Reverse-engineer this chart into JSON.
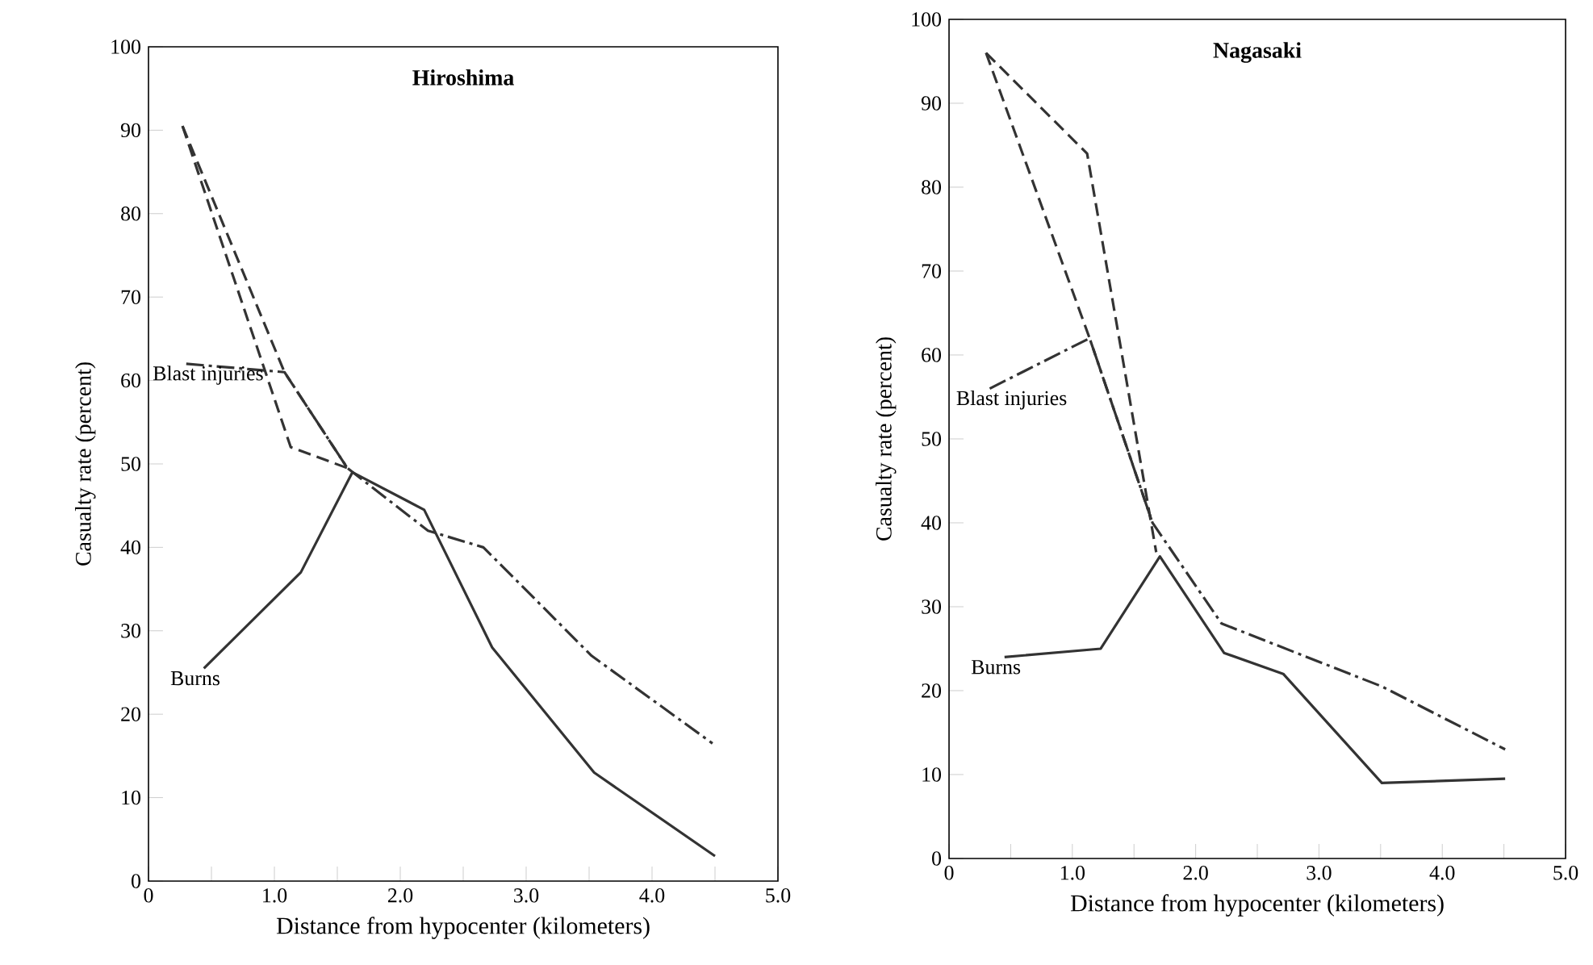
{
  "chart_data": [
    {
      "type": "line",
      "title": "Hiroshima",
      "xlabel": "Distance from hypocenter (kilometers)",
      "ylabel": "Casualty rate (percent)",
      "xlim": [
        0,
        5
      ],
      "ylim": [
        0,
        100
      ],
      "xticks": [
        {
          "value": 0,
          "label": "0"
        },
        {
          "value": 0.5,
          "label": null
        },
        {
          "value": 1,
          "label": "1.0"
        },
        {
          "value": 1.5,
          "label": null
        },
        {
          "value": 2,
          "label": "2.0"
        },
        {
          "value": 2.5,
          "label": null
        },
        {
          "value": 3,
          "label": "3.0"
        },
        {
          "value": 3.5,
          "label": null
        },
        {
          "value": 4,
          "label": "4.0"
        },
        {
          "value": 4.5,
          "label": null
        },
        {
          "value": 5,
          "label": "5.0"
        }
      ],
      "yticks": [
        0,
        10,
        20,
        30,
        40,
        50,
        60,
        70,
        80,
        90,
        100
      ],
      "grid": false,
      "legend": false,
      "marker": "none",
      "series": [
        {
          "name": "Burns",
          "color": "#333333",
          "line_style": "solid",
          "x": [
            0.44,
            1.21,
            1.62,
            2.19,
            2.73,
            3.54,
            4.5
          ],
          "values": [
            25.5,
            37,
            49,
            44.5,
            28,
            13,
            3
          ]
        },
        {
          "name": "Blast injuries",
          "color": "#333333",
          "line_style": "dashdot",
          "x": [
            0.3,
            1.08,
            1.58,
            2.22,
            2.66,
            3.52,
            4.48
          ],
          "values": [
            62,
            61,
            49.5,
            42,
            40,
            27,
            16.5
          ]
        },
        {
          "color": "#333333",
          "line_style": "dashed",
          "x": [
            0.27,
            1.13,
            1.58
          ],
          "values": [
            90.5,
            52,
            49.5
          ]
        },
        {
          "color": "#333333",
          "line_style": "dashed",
          "x": [
            0.27,
            1.08,
            1.58
          ],
          "values": [
            90.5,
            61,
            49.5
          ]
        }
      ]
    },
    {
      "type": "line",
      "title": "Nagasaki",
      "xlabel": "Distance from hypocenter (kilometers)",
      "ylabel": "Casualty rate (percent)",
      "xlim": [
        0,
        5
      ],
      "ylim": [
        0,
        100
      ],
      "xticks": [
        {
          "value": 0,
          "label": "0"
        },
        {
          "value": 0.5,
          "label": null
        },
        {
          "value": 1,
          "label": "1.0"
        },
        {
          "value": 1.5,
          "label": null
        },
        {
          "value": 2,
          "label": "2.0"
        },
        {
          "value": 2.5,
          "label": null
        },
        {
          "value": 3,
          "label": "3.0"
        },
        {
          "value": 3.5,
          "label": null
        },
        {
          "value": 4,
          "label": "4.0"
        },
        {
          "value": 4.5,
          "label": null
        },
        {
          "value": 5,
          "label": "5.0"
        }
      ],
      "yticks": [
        0,
        10,
        20,
        30,
        40,
        50,
        60,
        70,
        80,
        90,
        100
      ],
      "grid": false,
      "legend": false,
      "marker": "none",
      "series": [
        {
          "name": "Burns",
          "color": "#333333",
          "line_style": "solid",
          "x": [
            0.45,
            1.23,
            1.71,
            2.23,
            2.71,
            3.51,
            4.51
          ],
          "values": [
            24,
            25,
            36,
            24.5,
            22,
            9,
            9.5
          ]
        },
        {
          "name": "Blast injuries",
          "color": "#333333",
          "line_style": "dashdot",
          "x": [
            0.33,
            1.14,
            1.65,
            2.21,
            3.51,
            4.51
          ],
          "values": [
            56,
            62,
            40,
            28,
            20.5,
            13
          ]
        },
        {
          "color": "#333333",
          "line_style": "dashed",
          "x": [
            0.3,
            1.12,
            1.68
          ],
          "values": [
            96,
            84,
            36.5
          ]
        },
        {
          "color": "#333333",
          "line_style": "dashed",
          "x": [
            0.3,
            1.14,
            1.65
          ],
          "values": [
            96,
            62,
            40
          ]
        }
      ]
    }
  ]
}
